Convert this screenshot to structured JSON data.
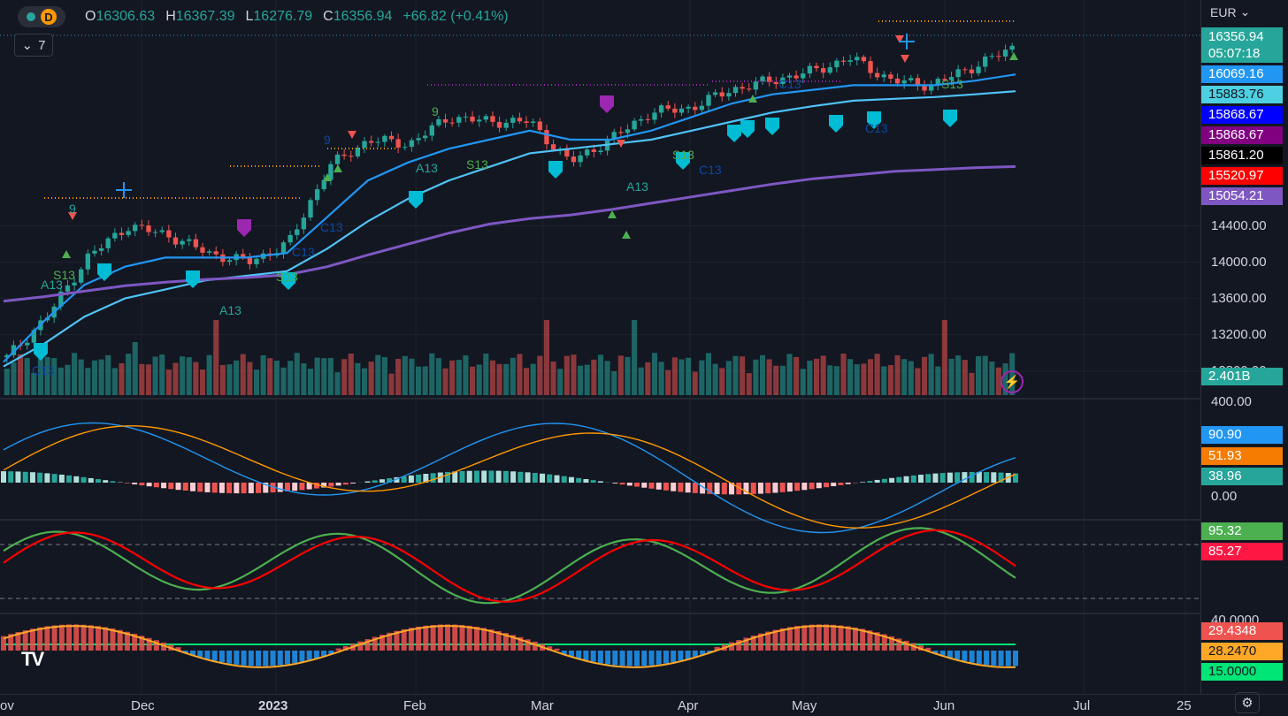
{
  "header": {
    "interval_letter": "D",
    "open_label": "O",
    "open": "16306.63",
    "high_label": "H",
    "high": "16367.39",
    "low_label": "L",
    "low": "16276.79",
    "close_label": "C",
    "close": "16356.94",
    "change": "+66.82 (+0.41%)",
    "legend_count": "7"
  },
  "scale": {
    "currency": "EUR"
  },
  "price_ticks": [
    "14400.00",
    "14000.00",
    "13600.00",
    "13200.00",
    "12800.00"
  ],
  "x_labels": [
    "ov",
    "Dec",
    "2023",
    "Feb",
    "Mar",
    "Apr",
    "May",
    "Jun",
    "Jul",
    "25"
  ],
  "tags": {
    "last_price": "16356.94",
    "countdown": "05:07:18",
    "ema_fast": "16069.16",
    "ema_slow": "15883.76",
    "level_blue": "15868.67",
    "level_purple": "15868.67",
    "level_black": "15861.20",
    "level_red": "15520.97",
    "sma_long": "15054.21",
    "volume": "2.401B",
    "macd_top": "400.00",
    "macd": "90.90",
    "macd_signal": "51.93",
    "macd_hist": "38.96",
    "macd_zero": "0.00",
    "stoch_k": "95.32",
    "stoch_d": "85.27",
    "sq_top": "40.0000",
    "sq_a": "29.4348",
    "sq_b": "28.2470",
    "sq_c": "15.0000"
  },
  "colors": {
    "background": "#131722",
    "up": "#26a69a",
    "down": "#ef5350",
    "ema_fast": "#2196f3",
    "ema_slow": "#4fc3f7",
    "sma_long": "#7e57c2",
    "macd": "#2196f3",
    "signal": "#ff9800",
    "stoch_k": "#4caf50",
    "stoch_d": "#ff0000",
    "sq_line": "#ffa726",
    "sq_level": "#00e676"
  },
  "signal_labels": [
    "9",
    "S13",
    "A13",
    "A13",
    "S13",
    "C13",
    "9",
    "A13",
    "S13",
    "9",
    "C13",
    "S13",
    "A13",
    "C13",
    "S13",
    "C13",
    "C13",
    "C13"
  ],
  "chart_data": {
    "type": "line",
    "title": "",
    "x_axis": [
      "Nov",
      "Dec",
      "2023",
      "Feb",
      "Mar",
      "Apr",
      "May",
      "Jun"
    ],
    "ylim": [
      12700,
      16500
    ],
    "series": [
      {
        "values": [
          12950,
          13400,
          14050,
          14400,
          14300,
          14100,
          14000,
          14200,
          15050,
          15350,
          15300,
          15600,
          15550,
          15550,
          15100,
          15350,
          15650,
          15700,
          15900,
          16000,
          16100,
          16250,
          16000,
          15950,
          16150,
          16357
        ]
      },
      {
        "values": [
          12900,
          13350,
          13750,
          13950,
          14050,
          14050,
          14050,
          14100,
          14500,
          14900,
          15100,
          15250,
          15350,
          15450,
          15350,
          15350,
          15450,
          15600,
          15750,
          15850,
          15900,
          15950,
          15950,
          15950,
          16000,
          16069
        ]
      },
      {
        "values": [
          12850,
          13100,
          13400,
          13600,
          13700,
          13800,
          13850,
          13900,
          14150,
          14450,
          14700,
          14900,
          15050,
          15200,
          15250,
          15300,
          15350,
          15450,
          15550,
          15650,
          15720,
          15780,
          15800,
          15820,
          15850,
          15884
        ]
      },
      {
        "values": [
          13570,
          13620,
          13680,
          13740,
          13780,
          13810,
          13830,
          13860,
          13950,
          14080,
          14200,
          14320,
          14420,
          14480,
          14520,
          14580,
          14650,
          14720,
          14790,
          14860,
          14920,
          14960,
          15000,
          15020,
          15040,
          15054
        ]
      }
    ]
  }
}
